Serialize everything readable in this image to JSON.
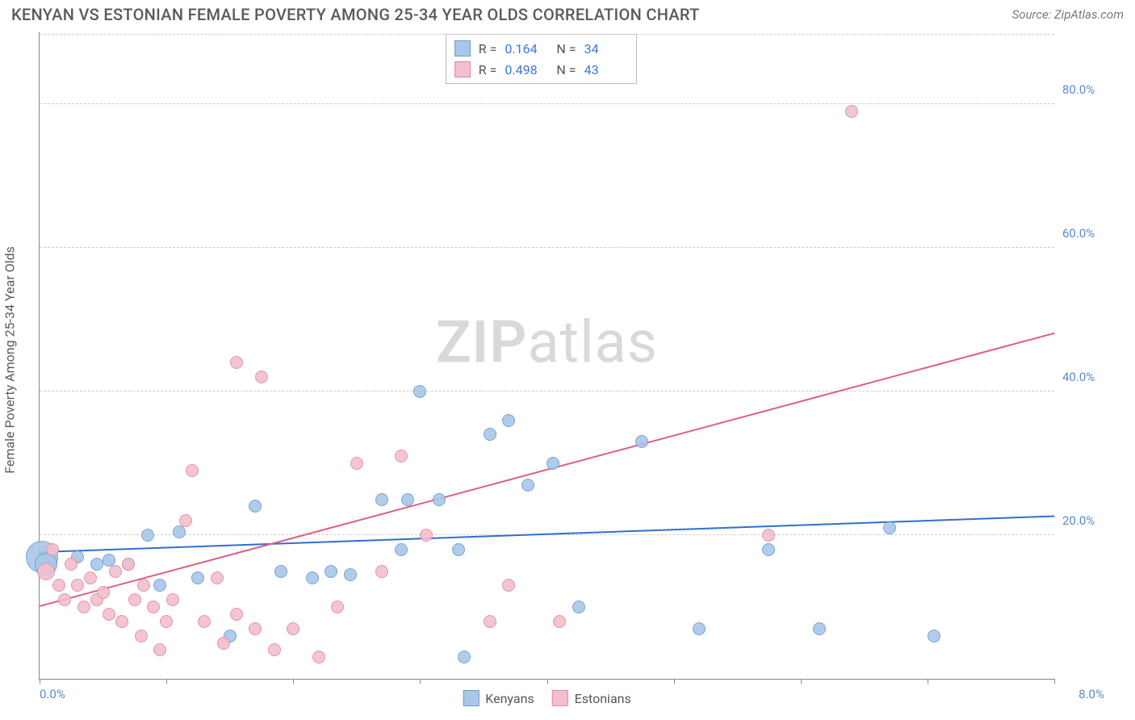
{
  "header": {
    "title": "KENYAN VS ESTONIAN FEMALE POVERTY AMONG 25-34 YEAR OLDS CORRELATION CHART",
    "source": "Source: ZipAtlas.com"
  },
  "watermark": {
    "bold": "ZIP",
    "rest": "atlas"
  },
  "chart": {
    "type": "scatter",
    "background_color": "#ffffff",
    "grid_color": "#cccccc",
    "axis_color": "#888888",
    "tick_label_color": "#5a8acb",
    "tick_fontsize": 15,
    "xlim": [
      0,
      8
    ],
    "ylim": [
      0,
      90
    ],
    "x_tick_positions": [
      0,
      1,
      2,
      3,
      4,
      5,
      6,
      7,
      8
    ],
    "x_tick_labels_shown": {
      "0": "0.0%",
      "8": "8.0%"
    },
    "y_gridlines": [
      20,
      40,
      60,
      80
    ],
    "y_tick_labels": {
      "20": "20.0%",
      "40": "40.0%",
      "60": "60.0%",
      "80": "80.0%"
    },
    "y_axis_label": "Female Poverty Among 25-34 Year Olds",
    "y_axis_label_fontsize": 16,
    "point_outline_width": 1,
    "point_fill_opacity": 0.35,
    "point_default_radius": 8,
    "series": [
      {
        "name": "Kenyans",
        "stroke": "#6b9bd1",
        "fill": "#a9c7e8",
        "r_stat": "0.164",
        "n_stat": "34",
        "trend": {
          "color": "#2f6fd0",
          "width": 2,
          "y_at_x0": 17.5,
          "y_at_x8": 22.5
        },
        "points": [
          {
            "x": 0.02,
            "y": 17,
            "r": 20
          },
          {
            "x": 0.05,
            "y": 16,
            "r": 14
          },
          {
            "x": 0.3,
            "y": 17
          },
          {
            "x": 0.45,
            "y": 16
          },
          {
            "x": 0.55,
            "y": 16.5
          },
          {
            "x": 0.7,
            "y": 16
          },
          {
            "x": 0.85,
            "y": 20
          },
          {
            "x": 0.95,
            "y": 13
          },
          {
            "x": 1.1,
            "y": 20.5
          },
          {
            "x": 1.25,
            "y": 14
          },
          {
            "x": 1.5,
            "y": 6
          },
          {
            "x": 1.7,
            "y": 24
          },
          {
            "x": 1.9,
            "y": 15
          },
          {
            "x": 2.15,
            "y": 14
          },
          {
            "x": 2.3,
            "y": 15
          },
          {
            "x": 2.45,
            "y": 14.5
          },
          {
            "x": 2.7,
            "y": 25
          },
          {
            "x": 2.85,
            "y": 18
          },
          {
            "x": 2.9,
            "y": 25
          },
          {
            "x": 3.0,
            "y": 40
          },
          {
            "x": 3.15,
            "y": 25
          },
          {
            "x": 3.3,
            "y": 18
          },
          {
            "x": 3.35,
            "y": 3
          },
          {
            "x": 3.55,
            "y": 34
          },
          {
            "x": 3.7,
            "y": 36
          },
          {
            "x": 3.85,
            "y": 27
          },
          {
            "x": 4.05,
            "y": 30
          },
          {
            "x": 4.25,
            "y": 10
          },
          {
            "x": 4.75,
            "y": 33
          },
          {
            "x": 5.2,
            "y": 7
          },
          {
            "x": 5.75,
            "y": 18
          },
          {
            "x": 6.15,
            "y": 7
          },
          {
            "x": 6.7,
            "y": 21
          },
          {
            "x": 7.05,
            "y": 6
          }
        ]
      },
      {
        "name": "Estonians",
        "stroke": "#e389a2",
        "fill": "#f2bfcc",
        "r_stat": "0.498",
        "n_stat": "43",
        "trend": {
          "color": "#de5f86",
          "width": 2,
          "y_at_x0": 10,
          "y_at_x8": 48
        },
        "points": [
          {
            "x": 0.05,
            "y": 15,
            "r": 11
          },
          {
            "x": 0.1,
            "y": 18
          },
          {
            "x": 0.15,
            "y": 13
          },
          {
            "x": 0.2,
            "y": 11
          },
          {
            "x": 0.25,
            "y": 16
          },
          {
            "x": 0.3,
            "y": 13
          },
          {
            "x": 0.35,
            "y": 10
          },
          {
            "x": 0.4,
            "y": 14
          },
          {
            "x": 0.45,
            "y": 11
          },
          {
            "x": 0.5,
            "y": 12
          },
          {
            "x": 0.55,
            "y": 9
          },
          {
            "x": 0.6,
            "y": 15
          },
          {
            "x": 0.65,
            "y": 8
          },
          {
            "x": 0.7,
            "y": 16
          },
          {
            "x": 0.75,
            "y": 11
          },
          {
            "x": 0.8,
            "y": 6
          },
          {
            "x": 0.82,
            "y": 13
          },
          {
            "x": 0.9,
            "y": 10
          },
          {
            "x": 0.95,
            "y": 4
          },
          {
            "x": 1.0,
            "y": 8
          },
          {
            "x": 1.05,
            "y": 11
          },
          {
            "x": 1.15,
            "y": 22
          },
          {
            "x": 1.2,
            "y": 29
          },
          {
            "x": 1.3,
            "y": 8
          },
          {
            "x": 1.4,
            "y": 14
          },
          {
            "x": 1.45,
            "y": 5
          },
          {
            "x": 1.55,
            "y": 44
          },
          {
            "x": 1.55,
            "y": 9
          },
          {
            "x": 1.7,
            "y": 7
          },
          {
            "x": 1.75,
            "y": 42
          },
          {
            "x": 1.85,
            "y": 4
          },
          {
            "x": 2.0,
            "y": 7
          },
          {
            "x": 2.2,
            "y": 3
          },
          {
            "x": 2.35,
            "y": 10
          },
          {
            "x": 2.5,
            "y": 30
          },
          {
            "x": 2.7,
            "y": 15
          },
          {
            "x": 2.85,
            "y": 31
          },
          {
            "x": 3.05,
            "y": 20
          },
          {
            "x": 3.55,
            "y": 8
          },
          {
            "x": 3.7,
            "y": 13
          },
          {
            "x": 4.1,
            "y": 8
          },
          {
            "x": 5.75,
            "y": 20
          },
          {
            "x": 6.4,
            "y": 79
          }
        ]
      }
    ],
    "legend_top": {
      "border_color": "#bbbbbb",
      "r_label": "R =",
      "n_label": "N ="
    },
    "legend_bottom": {
      "items": [
        "Kenyans",
        "Estonians"
      ]
    }
  }
}
